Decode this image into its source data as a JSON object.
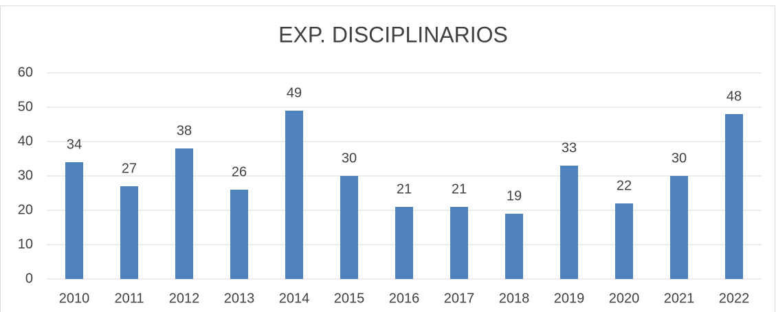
{
  "chart_data": {
    "type": "bar",
    "title": "EXP. DISCIPLINARIOS",
    "categories": [
      "2010",
      "2011",
      "2012",
      "2013",
      "2014",
      "2015",
      "2016",
      "2017",
      "2018",
      "2019",
      "2020",
      "2021",
      "2022"
    ],
    "values": [
      34,
      27,
      38,
      26,
      49,
      30,
      21,
      21,
      19,
      33,
      22,
      30,
      48
    ],
    "color": "#4f81bd",
    "ylim": [
      0,
      60
    ],
    "yticks": [
      0,
      10,
      20,
      30,
      40,
      50,
      60
    ],
    "grid": true,
    "data_labels": true
  }
}
